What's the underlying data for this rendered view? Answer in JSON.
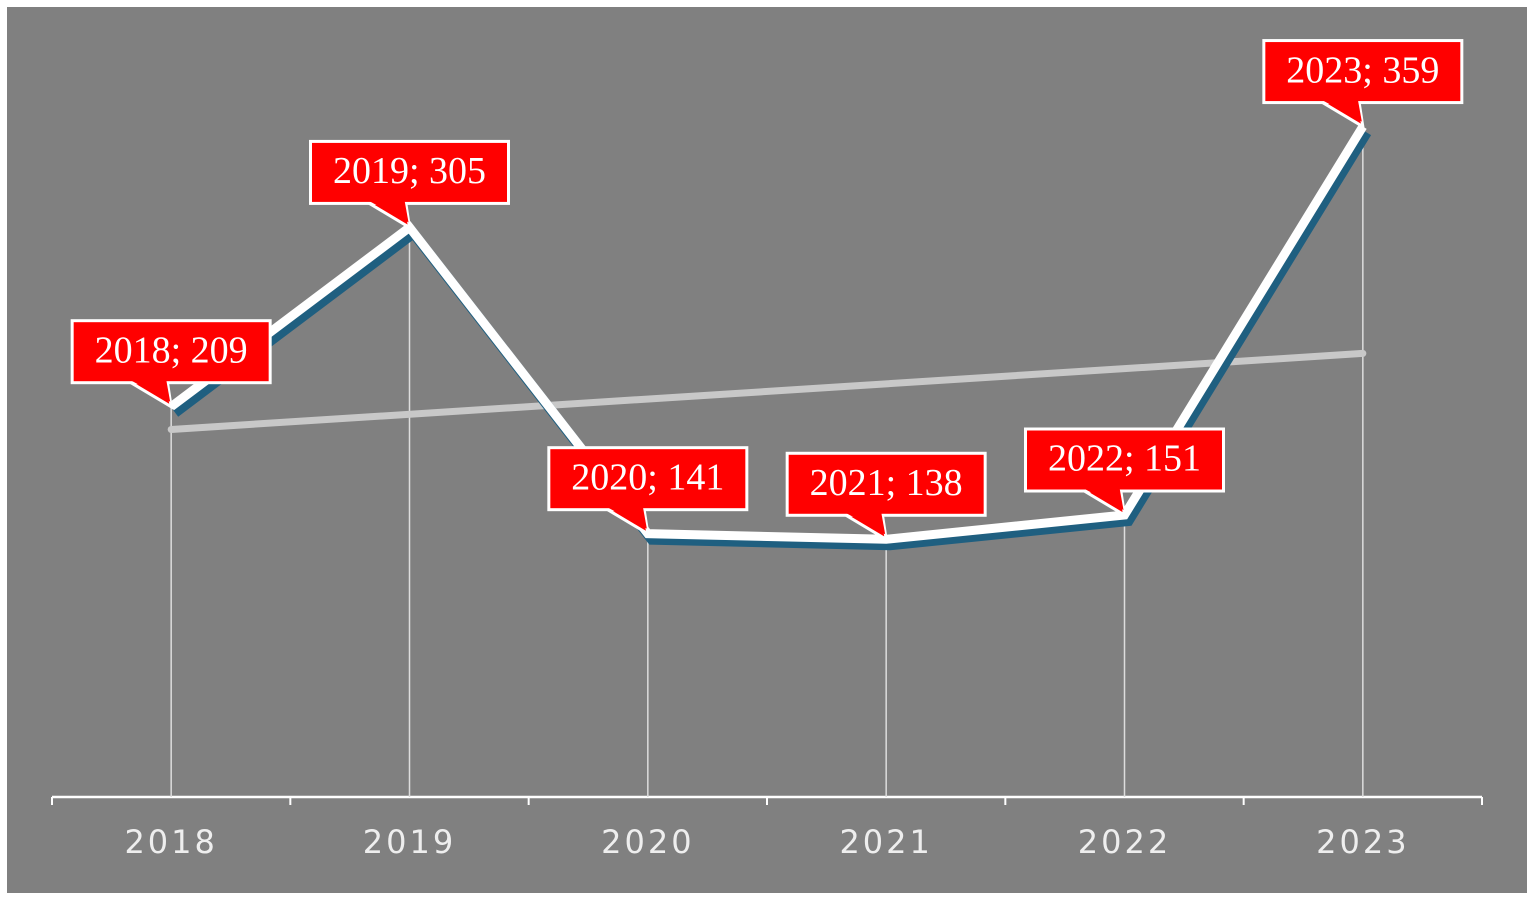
{
  "chart_data": {
    "type": "line",
    "categories": [
      "2018",
      "2019",
      "2020",
      "2021",
      "2022",
      "2023"
    ],
    "values": [
      209,
      305,
      141,
      138,
      151,
      359
    ],
    "value_labels": [
      "2018; 209",
      "2019; 305",
      "2020; 141",
      "2021; 138",
      "2022; 151",
      "2023; 359"
    ],
    "color": "#ffffff",
    "shadow_color": "#1f5f80",
    "label_color": "#ff0000",
    "trendline": "linear",
    "trendline_color": "#c8c8c8",
    "ylim": [
      0,
      400
    ]
  }
}
